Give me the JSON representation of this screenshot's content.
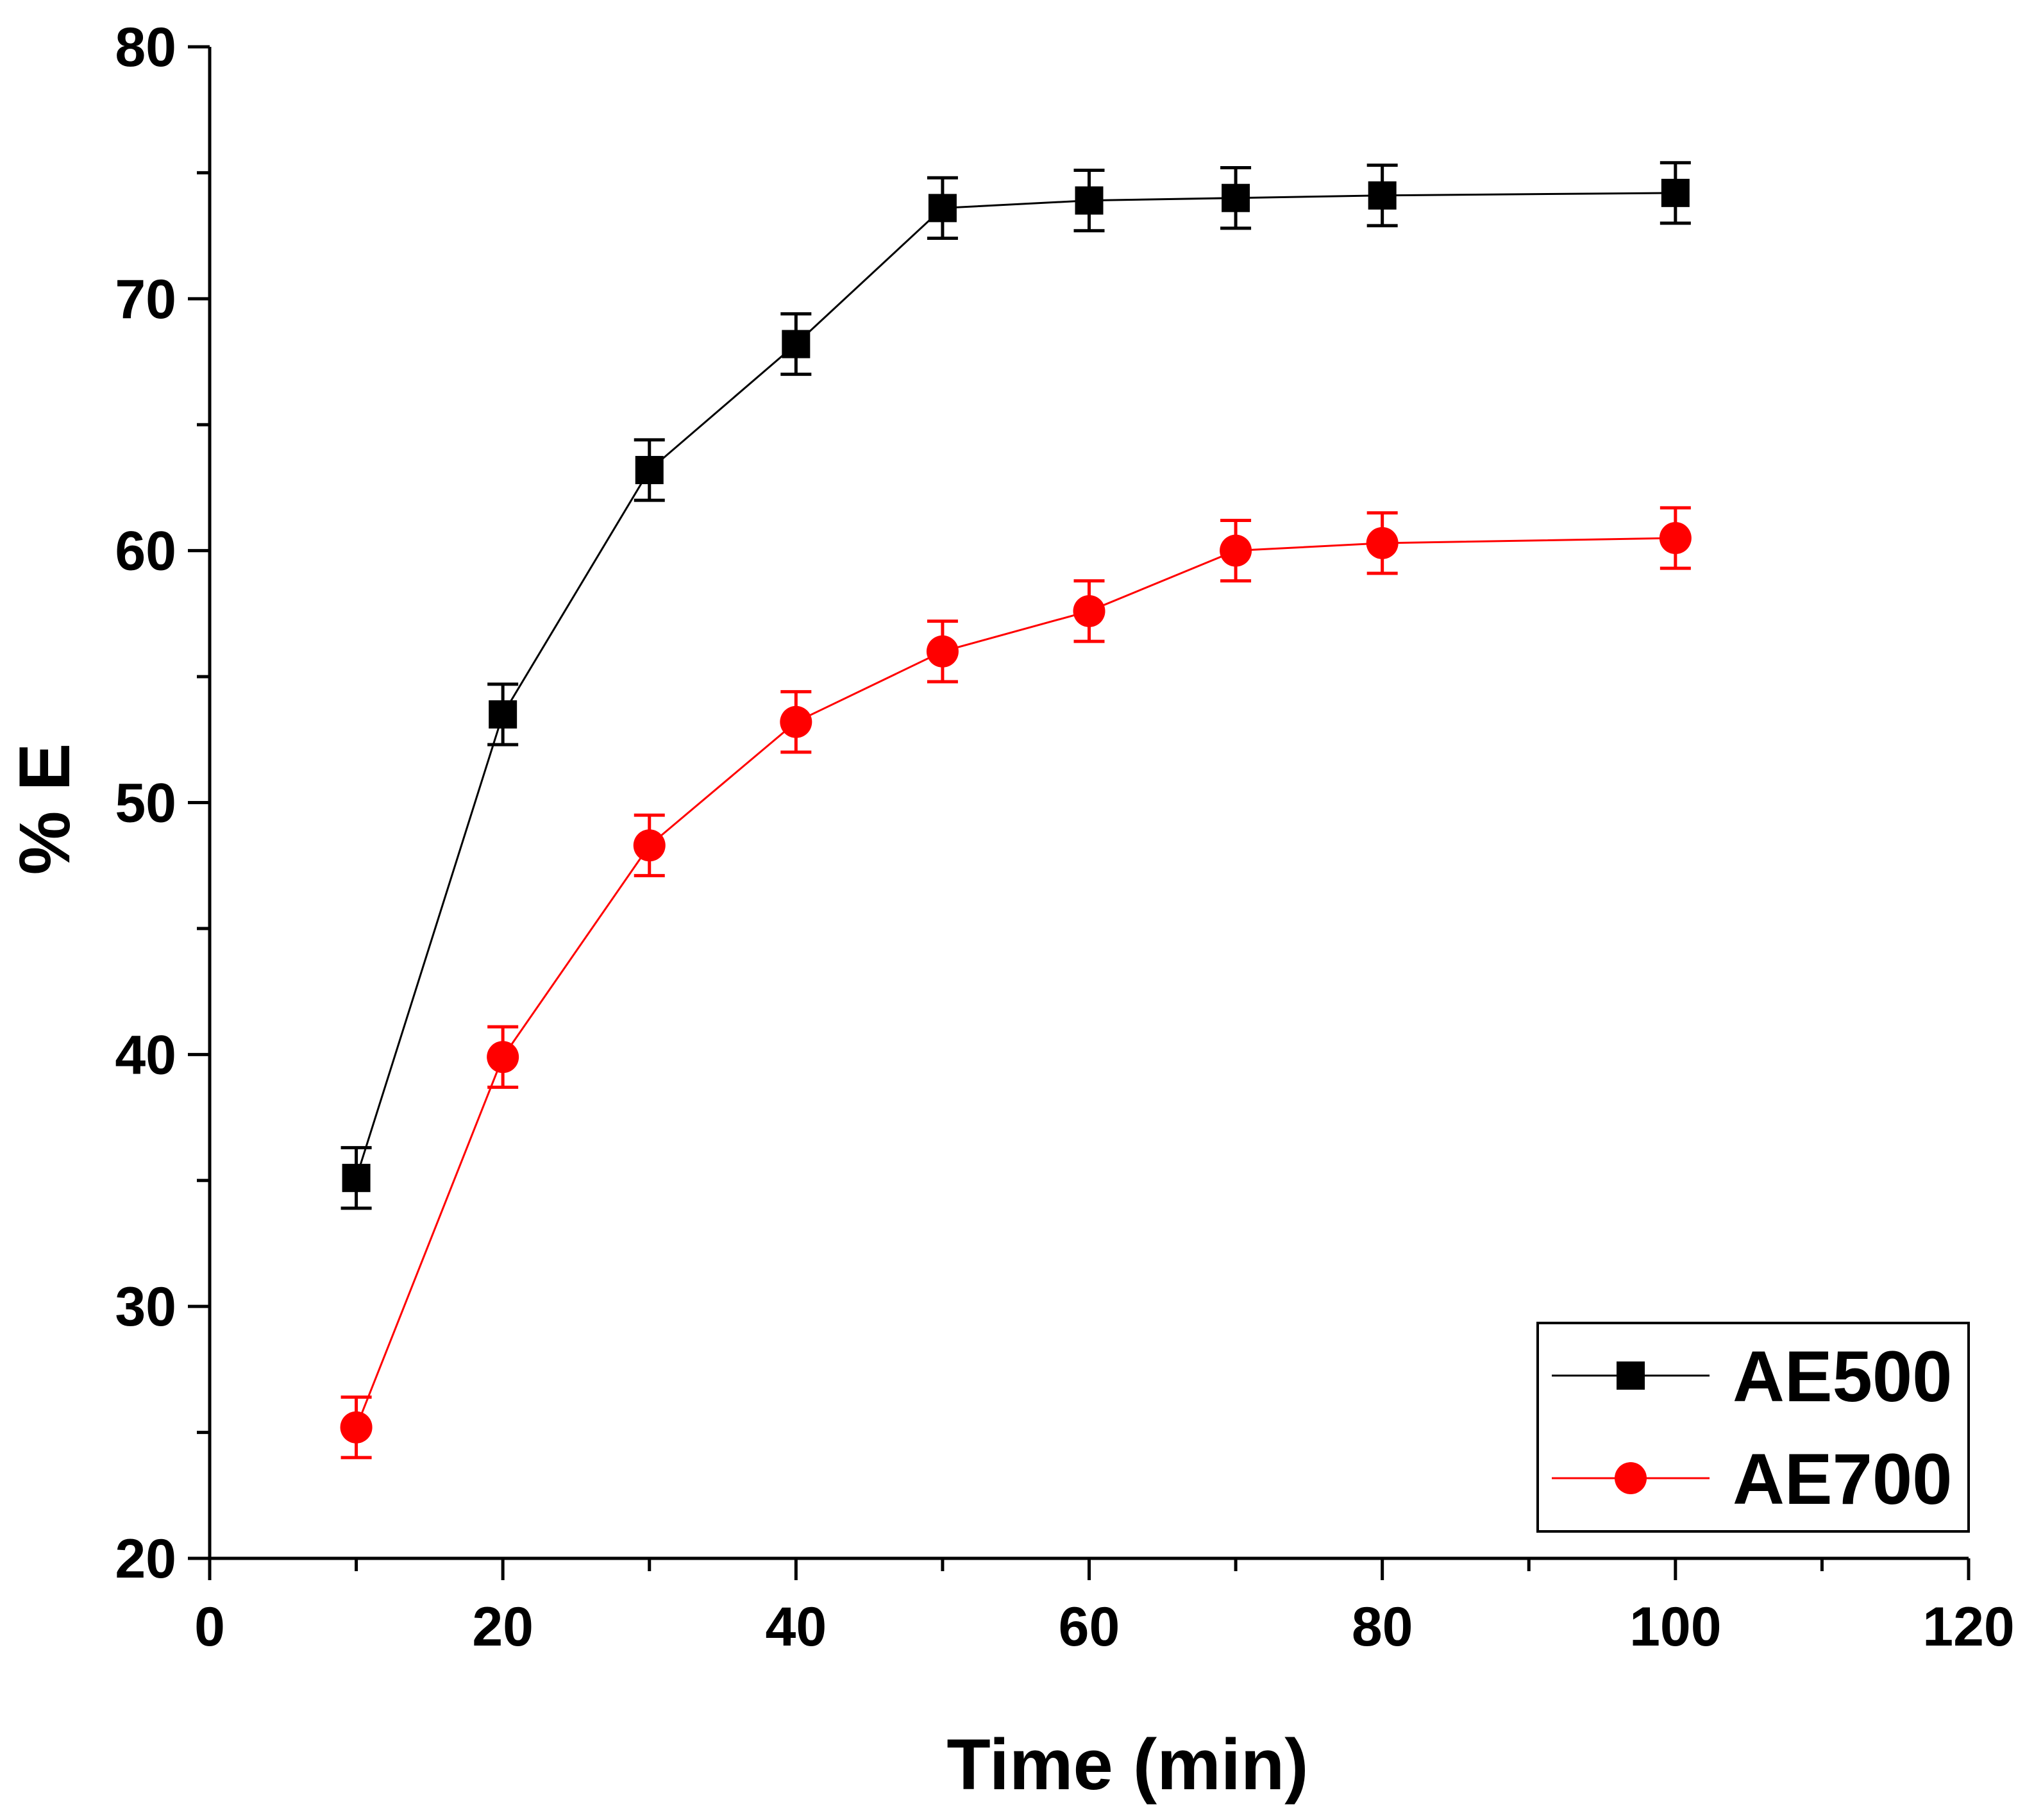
{
  "chart_data": {
    "type": "line",
    "title": "",
    "xlabel": "Time (min)",
    "ylabel": "% E",
    "xlim": [
      0,
      120
    ],
    "ylim": [
      20,
      80
    ],
    "xticks": [
      0,
      20,
      40,
      60,
      80,
      100,
      120
    ],
    "yticks": [
      20,
      30,
      40,
      50,
      60,
      70,
      80
    ],
    "xtick_labels": [
      "0",
      "20",
      "40",
      "60",
      "80",
      "100",
      "120"
    ],
    "ytick_labels": [
      "20",
      "30",
      "40",
      "50",
      "60",
      "70",
      "80"
    ],
    "x_minor_step": 10,
    "y_minor_step": 5,
    "grid": false,
    "legend_position": "bottom-right",
    "x": [
      10,
      20,
      30,
      40,
      50,
      60,
      70,
      80,
      100
    ],
    "series": [
      {
        "name": "AE500",
        "marker": "square",
        "color": "#000000",
        "values": [
          35.1,
          53.5,
          63.2,
          68.2,
          73.6,
          73.9,
          74.0,
          74.1,
          74.2
        ],
        "errors": [
          1.2,
          1.2,
          1.2,
          1.2,
          1.2,
          1.2,
          1.2,
          1.2,
          1.2
        ]
      },
      {
        "name": "AE700",
        "marker": "circle",
        "color": "#ff0000",
        "values": [
          25.2,
          39.9,
          48.3,
          53.2,
          56.0,
          57.6,
          60.0,
          60.3,
          60.5
        ],
        "errors": [
          1.2,
          1.2,
          1.2,
          1.2,
          1.2,
          1.2,
          1.2,
          1.2,
          1.2
        ]
      }
    ]
  }
}
